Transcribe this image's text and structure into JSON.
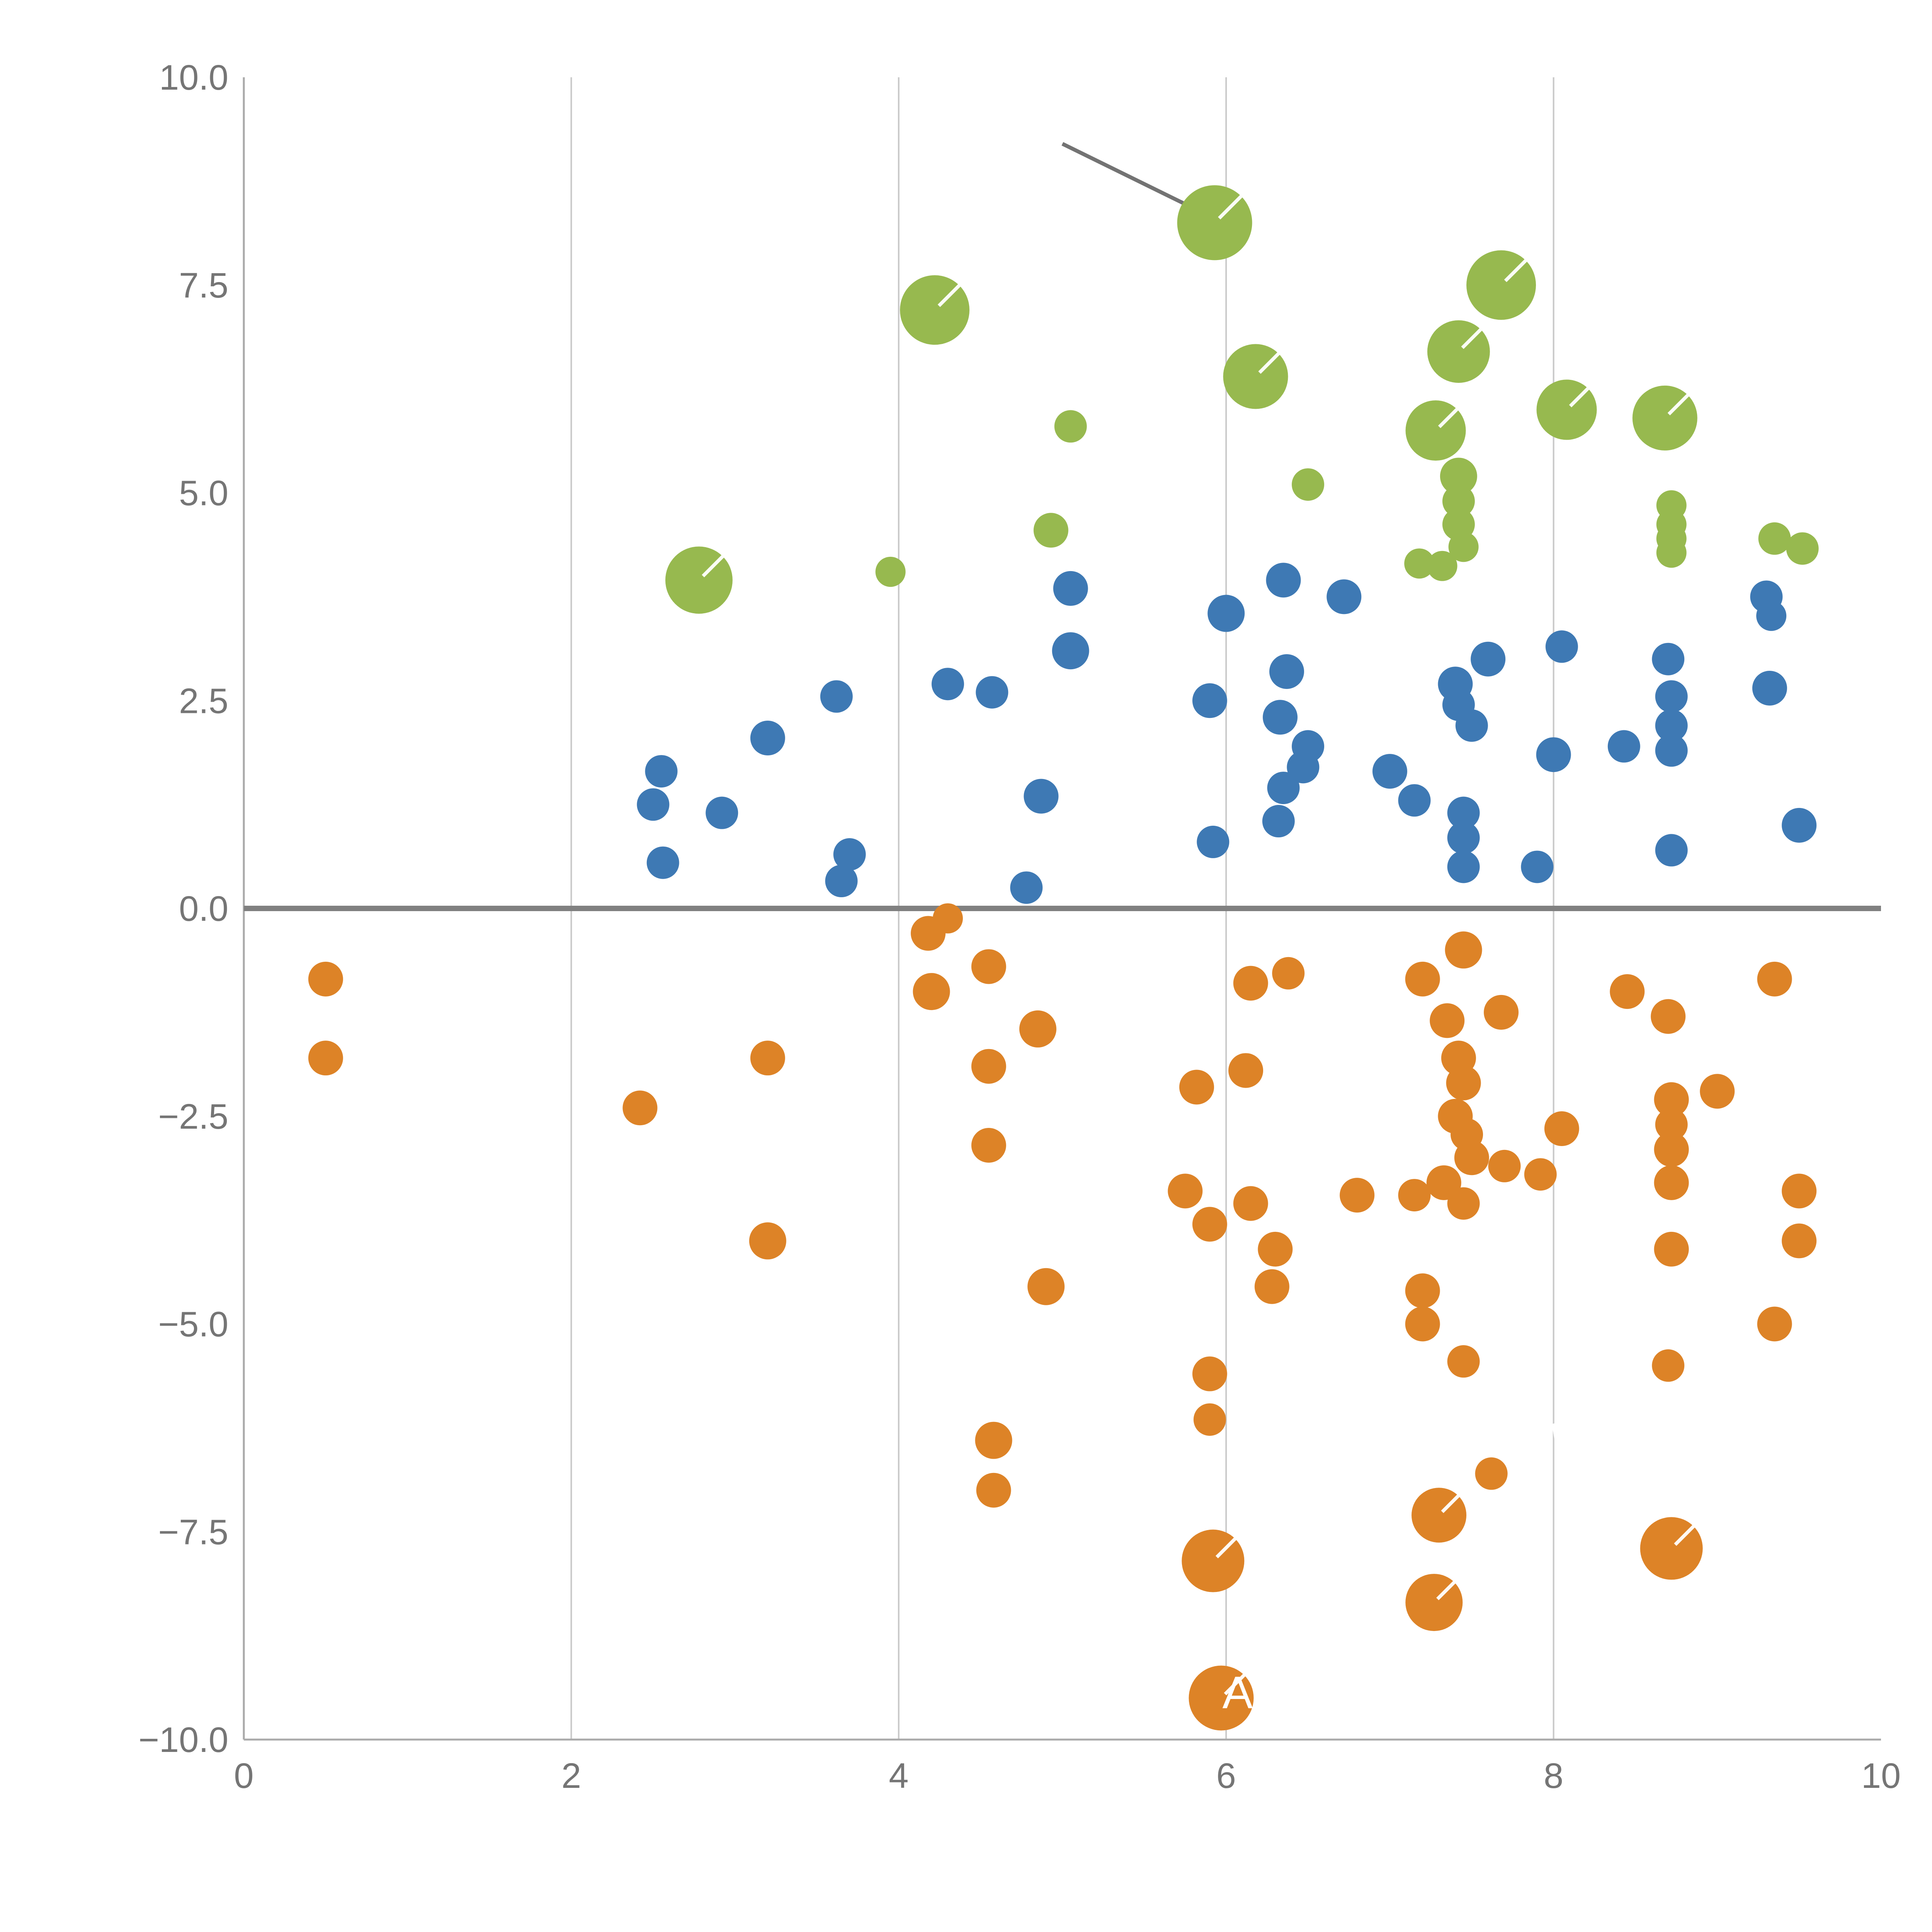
{
  "chart_data": {
    "type": "scatter",
    "title": "",
    "xlabel": "",
    "ylabel": "",
    "x_axis": {
      "min": 0,
      "max": 10,
      "ticks": [
        0,
        2,
        4,
        6,
        8,
        10
      ],
      "tick_labels": [
        "0",
        "2",
        "4",
        "6",
        "8",
        "10"
      ]
    },
    "y_axis": {
      "min": -10,
      "max": 10,
      "ticks": [
        10.0,
        7.5,
        5.0,
        2.5,
        0.0,
        -2.5,
        -5.0,
        -7.5,
        -10.0
      ],
      "tick_labels": [
        "10.0",
        "7.5",
        "5.0",
        "2.5",
        "0.0",
        "−2.5",
        "−5.0",
        "−7.5",
        "−10.0"
      ]
    },
    "grid": {
      "vertical_lines": [
        2,
        4,
        6,
        8
      ],
      "zero_line_y": 0,
      "legend": "none"
    },
    "colors": {
      "green": "#97B94F",
      "blue": "#3E79B4",
      "orange": "#DD8327",
      "axis_line": "#aaaaaa",
      "grid_line": "#c9c9c9",
      "zero_line": "#808080",
      "tick_label": "#757575",
      "annotation_line": "#737373",
      "bubble_mark": "#ffffff"
    },
    "annotation_line": {
      "x1": 5.0,
      "y1": 9.2,
      "x2": 5.93,
      "y2": 8.3
    },
    "labels": [
      {
        "text": "A",
        "x": 6.07,
        "y": -9.62,
        "size": 118
      }
    ],
    "fragments": [
      {
        "x": 8.0,
        "y": -6.3
      },
      {
        "x": 8.02,
        "y": -9.35
      }
    ],
    "series": [
      {
        "name": "green",
        "color_key": "green",
        "points": [
          [
            5.93,
            8.25,
            97
          ],
          [
            4.22,
            7.2,
            90
          ],
          [
            7.68,
            7.5,
            90
          ],
          [
            7.42,
            6.7,
            81
          ],
          [
            6.18,
            6.4,
            84
          ],
          [
            8.08,
            6.0,
            78
          ],
          [
            8.68,
            5.9,
            84
          ],
          [
            7.28,
            5.75,
            78
          ],
          [
            5.05,
            5.8,
            42
          ],
          [
            6.5,
            5.1,
            42
          ],
          [
            7.42,
            5.2,
            48
          ],
          [
            7.42,
            4.9,
            42
          ],
          [
            7.42,
            4.62,
            42
          ],
          [
            4.93,
            4.55,
            45
          ],
          [
            2.78,
            3.95,
            87
          ],
          [
            3.95,
            4.05,
            39
          ],
          [
            8.72,
            4.85,
            39
          ],
          [
            8.72,
            4.62,
            39
          ],
          [
            8.72,
            4.45,
            39
          ],
          [
            8.72,
            4.28,
            39
          ],
          [
            7.18,
            4.15,
            39
          ],
          [
            7.32,
            4.12,
            39
          ],
          [
            7.45,
            4.35,
            39
          ],
          [
            9.35,
            4.45,
            42
          ],
          [
            9.52,
            4.33,
            42
          ]
        ]
      },
      {
        "name": "blue",
        "color_key": "blue",
        "points": [
          [
            5.05,
            3.85,
            45
          ],
          [
            5.05,
            3.1,
            48
          ],
          [
            6.0,
            3.55,
            48
          ],
          [
            6.35,
            3.95,
            45
          ],
          [
            6.72,
            3.75,
            45
          ],
          [
            9.3,
            3.75,
            42
          ],
          [
            9.33,
            3.52,
            39
          ],
          [
            7.6,
            3.0,
            45
          ],
          [
            8.05,
            3.15,
            42
          ],
          [
            8.7,
            3.0,
            42
          ],
          [
            4.3,
            2.7,
            42
          ],
          [
            4.57,
            2.6,
            42
          ],
          [
            3.62,
            2.55,
            42
          ],
          [
            3.2,
            2.05,
            45
          ],
          [
            5.9,
            2.5,
            45
          ],
          [
            6.37,
            2.85,
            45
          ],
          [
            6.33,
            2.3,
            45
          ],
          [
            7.4,
            2.7,
            45
          ],
          [
            7.42,
            2.45,
            42
          ],
          [
            7.5,
            2.2,
            42
          ],
          [
            8.0,
            1.85,
            45
          ],
          [
            8.43,
            1.95,
            42
          ],
          [
            8.72,
            2.55,
            42
          ],
          [
            8.72,
            2.2,
            42
          ],
          [
            8.72,
            1.9,
            42
          ],
          [
            9.32,
            2.65,
            45
          ],
          [
            6.5,
            1.95,
            42
          ],
          [
            6.47,
            1.7,
            42
          ],
          [
            7.0,
            1.65,
            45
          ],
          [
            7.15,
            1.3,
            42
          ],
          [
            2.55,
            1.65,
            42
          ],
          [
            2.5,
            1.25,
            42
          ],
          [
            2.92,
            1.15,
            42
          ],
          [
            4.87,
            1.35,
            45
          ],
          [
            6.35,
            1.45,
            42
          ],
          [
            6.32,
            1.05,
            42
          ],
          [
            7.45,
            1.15,
            42
          ],
          [
            7.45,
            0.85,
            42
          ],
          [
            7.45,
            0.5,
            42
          ],
          [
            2.56,
            0.55,
            42
          ],
          [
            3.7,
            0.65,
            42
          ],
          [
            3.65,
            0.33,
            42
          ],
          [
            4.78,
            0.25,
            42
          ],
          [
            5.92,
            0.8,
            42
          ],
          [
            7.9,
            0.5,
            42
          ],
          [
            8.72,
            0.7,
            42
          ],
          [
            9.5,
            1.0,
            45
          ]
        ]
      },
      {
        "name": "orange",
        "color_key": "orange",
        "points": [
          [
            0.5,
            -0.85,
            45
          ],
          [
            0.5,
            -1.8,
            45
          ],
          [
            2.42,
            -2.4,
            45
          ],
          [
            3.2,
            -1.8,
            45
          ],
          [
            3.2,
            -4.0,
            48
          ],
          [
            4.18,
            -0.3,
            45
          ],
          [
            4.3,
            -0.12,
            39
          ],
          [
            4.2,
            -1.0,
            48
          ],
          [
            4.55,
            -0.7,
            45
          ],
          [
            4.55,
            -1.9,
            45
          ],
          [
            4.85,
            -1.45,
            48
          ],
          [
            4.55,
            -2.85,
            45
          ],
          [
            4.9,
            -4.55,
            48
          ],
          [
            4.58,
            -6.4,
            48
          ],
          [
            4.58,
            -7.0,
            45
          ],
          [
            5.82,
            -2.15,
            45
          ],
          [
            6.12,
            -1.95,
            45
          ],
          [
            5.75,
            -3.4,
            45
          ],
          [
            5.9,
            -3.8,
            45
          ],
          [
            6.15,
            -3.55,
            45
          ],
          [
            6.3,
            -4.1,
            45
          ],
          [
            6.28,
            -4.55,
            45
          ],
          [
            6.15,
            -0.9,
            45
          ],
          [
            6.38,
            -0.78,
            42
          ],
          [
            5.9,
            -5.6,
            45
          ],
          [
            5.9,
            -6.15,
            42
          ],
          [
            5.92,
            -7.85,
            81
          ],
          [
            5.97,
            -9.5,
            84
          ],
          [
            6.8,
            -3.45,
            45
          ],
          [
            7.2,
            -0.85,
            45
          ],
          [
            7.45,
            -0.5,
            48
          ],
          [
            7.35,
            -1.35,
            45
          ],
          [
            7.42,
            -1.8,
            45
          ],
          [
            7.45,
            -2.1,
            45
          ],
          [
            7.4,
            -2.5,
            45
          ],
          [
            7.47,
            -2.72,
            42
          ],
          [
            7.5,
            -3.0,
            45
          ],
          [
            7.33,
            -3.3,
            45
          ],
          [
            7.45,
            -3.55,
            42
          ],
          [
            7.15,
            -3.45,
            42
          ],
          [
            7.68,
            -1.25,
            45
          ],
          [
            7.7,
            -3.1,
            42
          ],
          [
            7.92,
            -3.2,
            42
          ],
          [
            7.2,
            -4.6,
            45
          ],
          [
            7.2,
            -5.0,
            45
          ],
          [
            7.45,
            -5.45,
            42
          ],
          [
            7.3,
            -7.3,
            71
          ],
          [
            7.62,
            -6.8,
            42
          ],
          [
            7.27,
            -8.35,
            74
          ],
          [
            8.05,
            -2.65,
            45
          ],
          [
            8.45,
            -1.0,
            45
          ],
          [
            8.7,
            -1.3,
            45
          ],
          [
            8.72,
            -2.3,
            45
          ],
          [
            8.72,
            -2.6,
            42
          ],
          [
            8.72,
            -2.9,
            45
          ],
          [
            8.72,
            -3.3,
            45
          ],
          [
            8.72,
            -4.1,
            45
          ],
          [
            9.0,
            -2.2,
            45
          ],
          [
            8.7,
            -5.5,
            42
          ],
          [
            8.72,
            -7.7,
            81
          ],
          [
            9.35,
            -0.85,
            45
          ],
          [
            9.5,
            -3.4,
            45
          ],
          [
            9.5,
            -4.0,
            45
          ],
          [
            9.35,
            -5.0,
            45
          ]
        ]
      }
    ]
  }
}
